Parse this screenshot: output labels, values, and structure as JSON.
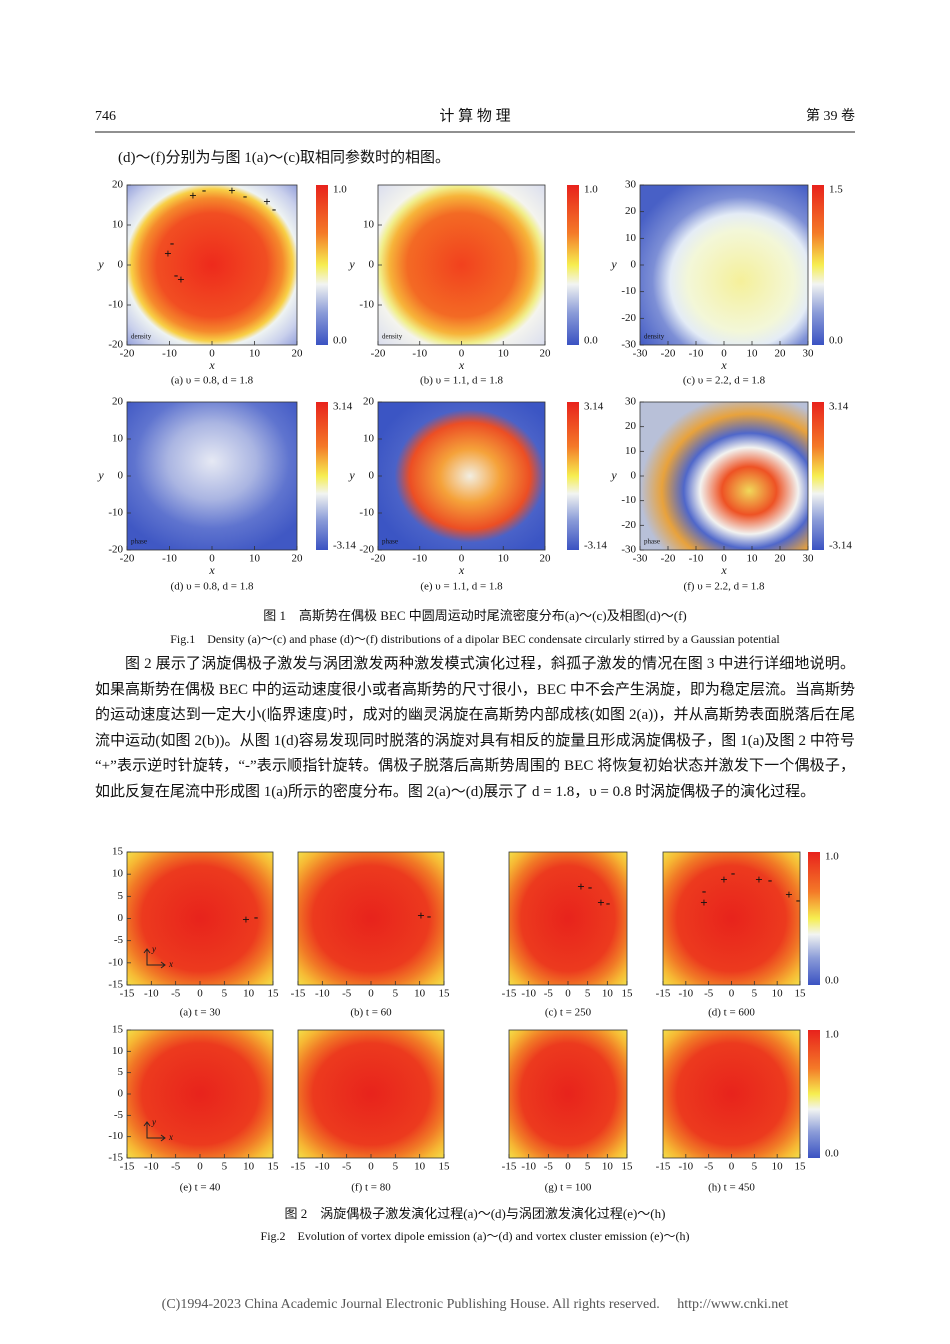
{
  "header": {
    "page": "746",
    "journal": "计 算 物 理",
    "volume": "第 39 卷"
  },
  "intro": "(d)～(f)分别为与图 1(a)～(c)取相同参数时的相图。",
  "figure1": {
    "panels": [
      {
        "caption": "(a) υ = 0.8,  d = 1.8",
        "xlabel": "x",
        "ylabel": "y",
        "xlim": [
          -20,
          20
        ],
        "ylim": [
          -20,
          20
        ],
        "xticks": [
          -20,
          -10,
          0,
          10,
          20
        ],
        "yticks": [
          20,
          10,
          0,
          -10,
          -20
        ],
        "cbar": [
          "1.0",
          "0.0"
        ],
        "tag": "density",
        "signs": [
          "+",
          "-",
          "+",
          "-",
          "+",
          "-",
          "-",
          "+",
          "-",
          "+"
        ]
      },
      {
        "caption": "(b) υ = 1.1,  d = 1.8",
        "xlabel": "x",
        "ylabel": "y",
        "xlim": [
          -20,
          20
        ],
        "ylim": [
          -20,
          20
        ],
        "xticks": [
          -20,
          -10,
          0,
          10,
          20
        ],
        "yticks": [
          10,
          0,
          -10
        ],
        "cbar": [
          "1.0",
          "0.0"
        ],
        "tag": "density"
      },
      {
        "caption": "(c) υ = 2.2,  d = 1.8",
        "xlabel": "x",
        "ylabel": "y",
        "xlim": [
          -30,
          30
        ],
        "ylim": [
          -30,
          30
        ],
        "xticks": [
          -30,
          -20,
          -10,
          0,
          10,
          20,
          30
        ],
        "yticks": [
          30,
          20,
          10,
          0,
          -10,
          -20,
          -30
        ],
        "cbar": [
          "1.5",
          "0.0"
        ],
        "tag": "density"
      },
      {
        "caption": "(d) υ = 0.8,  d = 1.8",
        "xlabel": "x",
        "ylabel": "y",
        "xlim": [
          -20,
          20
        ],
        "ylim": [
          -20,
          20
        ],
        "xticks": [
          -20,
          -10,
          0,
          10,
          20
        ],
        "yticks": [
          20,
          10,
          0,
          -10,
          -20
        ],
        "cbar": [
          "3.14",
          "-3.14"
        ],
        "tag": "phase"
      },
      {
        "caption": "(e) υ = 1.1,  d = 1.8",
        "xlabel": "x",
        "ylabel": "y",
        "xlim": [
          -20,
          20
        ],
        "ylim": [
          -20,
          20
        ],
        "xticks": [
          -20,
          -10,
          0,
          10,
          20
        ],
        "yticks": [
          20,
          10,
          0,
          -10,
          -20
        ],
        "cbar": [
          "3.14",
          "-3.14"
        ],
        "tag": "phase"
      },
      {
        "caption": "(f) υ = 2.2,  d = 1.8",
        "xlabel": "x",
        "ylabel": "y",
        "xlim": [
          -30,
          30
        ],
        "ylim": [
          -30,
          30
        ],
        "xticks": [
          -30,
          -20,
          -10,
          0,
          10,
          20,
          30
        ],
        "yticks": [
          30,
          20,
          10,
          0,
          -10,
          -20,
          -30
        ],
        "cbar": [
          "3.14",
          "-3.14"
        ],
        "tag": "phase"
      }
    ],
    "caption_cn": "图 1　高斯势在偶极 BEC 中圆周运动时尾流密度分布(a)～(c)及相图(d)～(f)",
    "caption_en": "Fig.1　Density (a)～(c) and phase (d)～(f) distributions of a dipolar BEC condensate circularly stirred by a Gaussian potential"
  },
  "paragraph": "图 2 展示了涡旋偶极子激发与涡团激发两种激发模式演化过程，斜孤子激发的情况在图 3 中进行详细地说明。如果高斯势在偶极 BEC 中的运动速度很小或者高斯势的尺寸很小，BEC 中不会产生涡旋，即为稳定层流。当高斯势的运动速度达到一定大小(临界速度)时，成对的幽灵涡旋在高斯势内部成核(如图 2(a))，并从高斯势表面脱落后在尾流中运动(如图 2(b))。从图 1(d)容易发现同时脱落的涡旋对具有相反的旋量且形成涡旋偶极子，图 1(a)及图 2 中符号“+”表示逆时针旋转，“-”表示顺指针旋转。偶极子脱落后高斯势周围的 BEC 将恢复初始状态并激发下一个偶极子，如此反复在尾流中形成图 1(a)所示的密度分布。图 2(a)～(d)展示了 d = 1.8，υ = 0.8 时涡旋偶极子的演化过程。",
  "figure2": {
    "panels": [
      {
        "caption": "(a) t = 30",
        "xlim": [
          -15,
          15
        ],
        "ylim": [
          -15,
          15
        ],
        "xticks": [
          -15,
          -10,
          -5,
          0,
          5,
          10,
          15
        ],
        "yticks": [
          15,
          10,
          5,
          0,
          -5,
          -10,
          -15
        ],
        "axes": [
          "y",
          "x"
        ],
        "signs": [
          "+",
          "-"
        ]
      },
      {
        "caption": "(b) t = 60",
        "xlim": [
          -15,
          15
        ],
        "ylim": [
          -15,
          15
        ],
        "xticks": [
          -15,
          -10,
          -5,
          0,
          5,
          10,
          15
        ],
        "signs": [
          "+",
          "-"
        ]
      },
      {
        "caption": "(c) t = 250",
        "xlim": [
          -15,
          15
        ],
        "ylim": [
          -15,
          15
        ],
        "xticks": [
          -15,
          -10,
          -5,
          0,
          5,
          10,
          15
        ],
        "signs": [
          "+",
          "-",
          "+",
          "-"
        ]
      },
      {
        "caption": "(d) t = 600",
        "xlim": [
          -15,
          15
        ],
        "ylim": [
          -15,
          15
        ],
        "xticks": [
          -15,
          -10,
          -5,
          0,
          5,
          10,
          15
        ],
        "cbar": [
          "1.0",
          "0.0"
        ],
        "signs": [
          "-",
          "+",
          "+",
          "-",
          "+",
          "-",
          "+",
          "-"
        ]
      },
      {
        "caption": "(e) t = 40",
        "xlim": [
          -15,
          15
        ],
        "ylim": [
          -15,
          15
        ],
        "xticks": [
          -15,
          -10,
          -5,
          0,
          5,
          10,
          15
        ],
        "yticks": [
          15,
          10,
          5,
          0,
          -5,
          -10,
          -15
        ],
        "axes": [
          "y",
          "x"
        ]
      },
      {
        "caption": "(f) t = 80",
        "xlim": [
          -15,
          15
        ],
        "ylim": [
          -15,
          15
        ],
        "xticks": [
          -15,
          -10,
          -5,
          0,
          5,
          10,
          15
        ]
      },
      {
        "caption": "(g) t = 100",
        "xlim": [
          -15,
          15
        ],
        "ylim": [
          -15,
          15
        ],
        "xticks": [
          -15,
          -10,
          -5,
          0,
          5,
          10,
          15
        ]
      },
      {
        "caption": "(h) t = 450",
        "xlim": [
          -15,
          15
        ],
        "ylim": [
          -15,
          15
        ],
        "xticks": [
          -15,
          -10,
          -5,
          0,
          5,
          10,
          15
        ],
        "cbar": [
          "1.0",
          "0.0"
        ]
      }
    ],
    "caption_cn": "图 2　涡旋偶极子激发演化过程(a)～(d)与涡团激发演化过程(e)～(h)",
    "caption_en": "Fig.2　Evolution of vortex dipole emission (a)～(d) and vortex cluster emission (e)～(h)"
  },
  "footer": "(C)1994-2023 China Academic Journal Electronic Publishing House. All rights reserved.　 http://www.cnki.net"
}
